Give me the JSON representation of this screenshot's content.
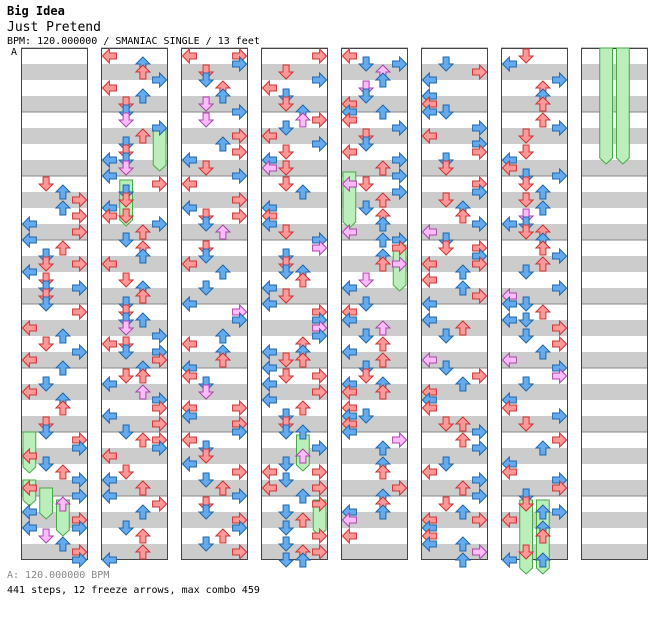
{
  "header": {
    "artist": "Big Idea",
    "title": "Just Pretend",
    "meta": "BPM: 120.000000 / SMANIAC SINGLE / 13 feet",
    "section_label": "A"
  },
  "footer": {
    "bpm_note": "A: 120.000000 BPM",
    "stats": "441 steps, 12 freeze arrows, max combo 459"
  },
  "colors": {
    "stripe": "#cccccc",
    "lane_border": "#444444",
    "red_arrow": "#ff9999",
    "red_border": "#cc3333",
    "blue_arrow": "#66aaee",
    "blue_border": "#2266aa",
    "pink_arrow": "#ffbbff",
    "pink_border": "#aa44aa",
    "freeze_fill": "#bbeebb",
    "freeze_border": "#44aa44"
  },
  "chart_data": {
    "type": "table",
    "columns": 8,
    "measures_per_column": 8,
    "lanes": [
      "left",
      "down",
      "up",
      "right"
    ],
    "freeze_count": 12,
    "steps": 441,
    "max_combo": 459
  }
}
